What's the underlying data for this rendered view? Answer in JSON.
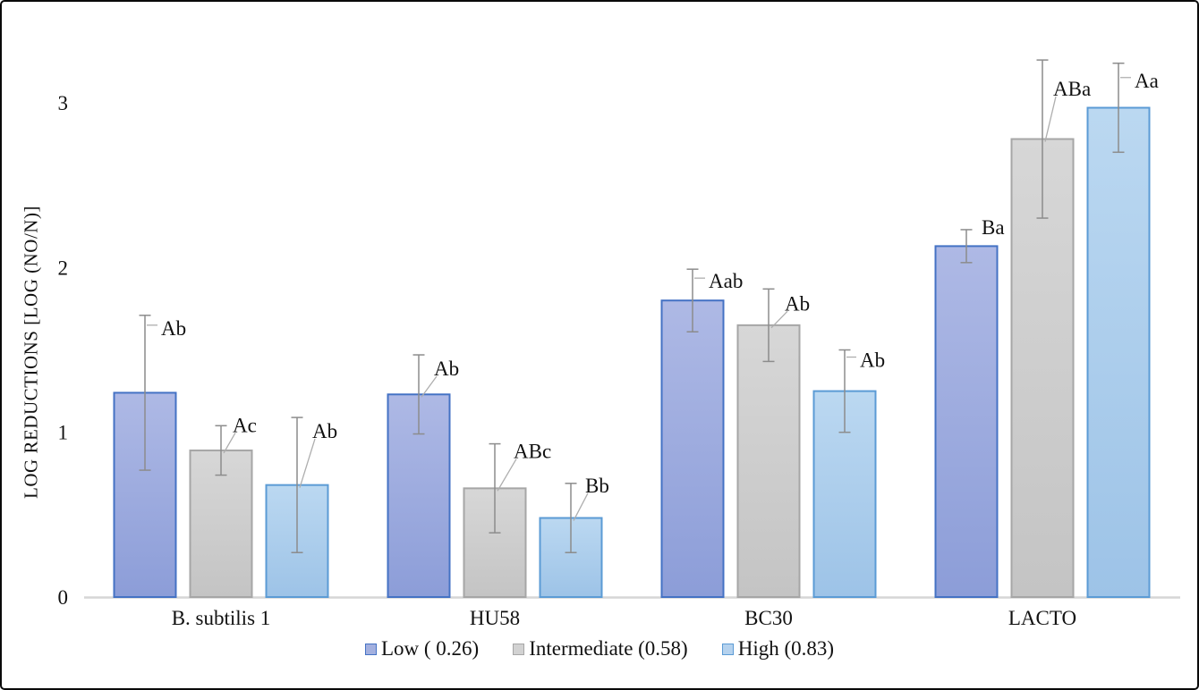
{
  "chart_data": {
    "type": "bar",
    "title": "",
    "xlabel": "",
    "ylabel": "LOG REDUCTIONS [LOG (NO/N)]",
    "ylim": [
      0,
      3.3
    ],
    "yticks": [
      0,
      1,
      2,
      3
    ],
    "grid": false,
    "legend_position": "bottom-center",
    "axis_line_color": "#d6d6d6",
    "error_bar_color": "#8c8c8c",
    "leader_line_color": "#aeaeae",
    "categories": [
      "B. subtilis 1",
      "HU58",
      "BC30",
      "LACTO"
    ],
    "series": [
      {
        "name": "Low ( 0.26)",
        "fill_top": "#aeb9e5",
        "fill_bottom": "#8c9dd8",
        "legend_fill": "#a3b0df",
        "stroke": "#4472c4",
        "values": [
          1.24,
          1.23,
          1.8,
          2.13
        ],
        "errors": [
          0.47,
          0.24,
          0.19,
          0.1
        ],
        "point_labels": [
          "Ab",
          "Ab",
          "Aab",
          "Ba"
        ],
        "label_styles": [
          {
            "leader": "horiz",
            "dx": 18,
            "dy": 14
          },
          {
            "leader": "diag",
            "dx": 17,
            "dy": 15
          },
          {
            "leader": "horiz",
            "dx": 18,
            "dy": 13
          },
          {
            "leader": "none",
            "dx": 17,
            "dy": -3
          }
        ]
      },
      {
        "name": "Intermediate (0.58)",
        "fill_top": "#d7d7d7",
        "fill_bottom": "#c4c4c4",
        "legend_fill": "#d2d2d2",
        "stroke": "#a6a6a6",
        "values": [
          0.89,
          0.66,
          1.65,
          2.78
        ],
        "errors": [
          0.15,
          0.27,
          0.22,
          0.48
        ],
        "point_labels": [
          "Ac",
          "ABc",
          "Ab",
          "ABa"
        ],
        "label_styles": [
          {
            "leader": "diag",
            "dx": 13,
            "dy": -1
          },
          {
            "leader": "diag",
            "dx": 21,
            "dy": 8
          },
          {
            "leader": "diag",
            "dx": 18,
            "dy": 16
          },
          {
            "leader": "diag",
            "dx": 12,
            "dy": 32
          }
        ]
      },
      {
        "name": "High (0.83)",
        "fill_top": "#bbd8f1",
        "fill_bottom": "#9dc3e7",
        "legend_fill": "#b5d2ee",
        "stroke": "#5b9bd5",
        "values": [
          0.68,
          0.48,
          1.25,
          2.97
        ],
        "errors": [
          0.41,
          0.21,
          0.25,
          0.27
        ],
        "point_labels": [
          "Ab",
          "Bb",
          "Ab",
          "Aa"
        ],
        "label_styles": [
          {
            "leader": "diag",
            "dx": 17,
            "dy": 15
          },
          {
            "leader": "diag",
            "dx": 16,
            "dy": 2
          },
          {
            "leader": "horiz",
            "dx": 17,
            "dy": 11
          },
          {
            "leader": "horiz",
            "dx": 18,
            "dy": 19
          }
        ]
      }
    ]
  }
}
